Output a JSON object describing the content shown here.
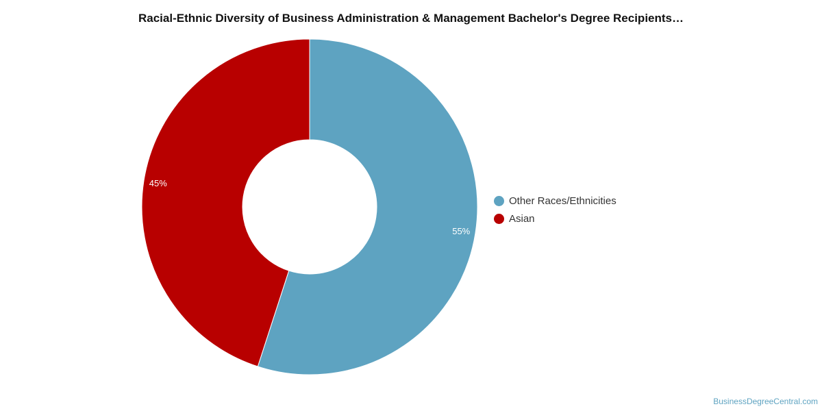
{
  "chart_data": {
    "type": "pie",
    "title": "Racial-Ethnic Diversity of Business Administration & Management Bachelor's Degree Recipients…",
    "categories": [
      "Other Races/Ethnicities",
      "Asian"
    ],
    "values": [
      55,
      45
    ],
    "value_labels": [
      "55%",
      "45%"
    ],
    "colors": [
      "#5ea3c1",
      "#b80000"
    ],
    "donut": true,
    "legend_position": "right"
  },
  "footer": {
    "brand": "BusinessDegreeCentral.com"
  }
}
